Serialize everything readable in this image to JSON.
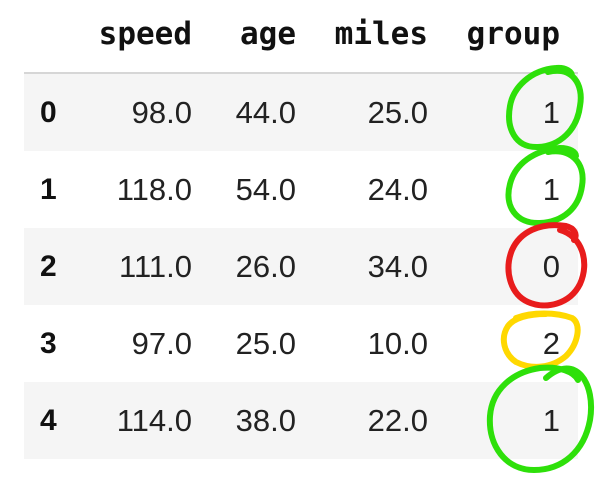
{
  "columns": {
    "speed": "speed",
    "age": "age",
    "miles": "miles",
    "group": "group"
  },
  "rows": [
    {
      "index": "0",
      "speed": "98.0",
      "age": "44.0",
      "miles": "25.0",
      "group": "1"
    },
    {
      "index": "1",
      "speed": "118.0",
      "age": "54.0",
      "miles": "24.0",
      "group": "1"
    },
    {
      "index": "2",
      "speed": "111.0",
      "age": "26.0",
      "miles": "34.0",
      "group": "0"
    },
    {
      "index": "3",
      "speed": "97.0",
      "age": "25.0",
      "miles": "10.0",
      "group": "2"
    },
    {
      "index": "4",
      "speed": "114.0",
      "age": "38.0",
      "miles": "22.0",
      "group": "1"
    }
  ],
  "annotations": {
    "circle_colors": {
      "group_1": "#2ee00a",
      "group_0": "#e81c1c",
      "group_2": "#ffd800"
    }
  }
}
